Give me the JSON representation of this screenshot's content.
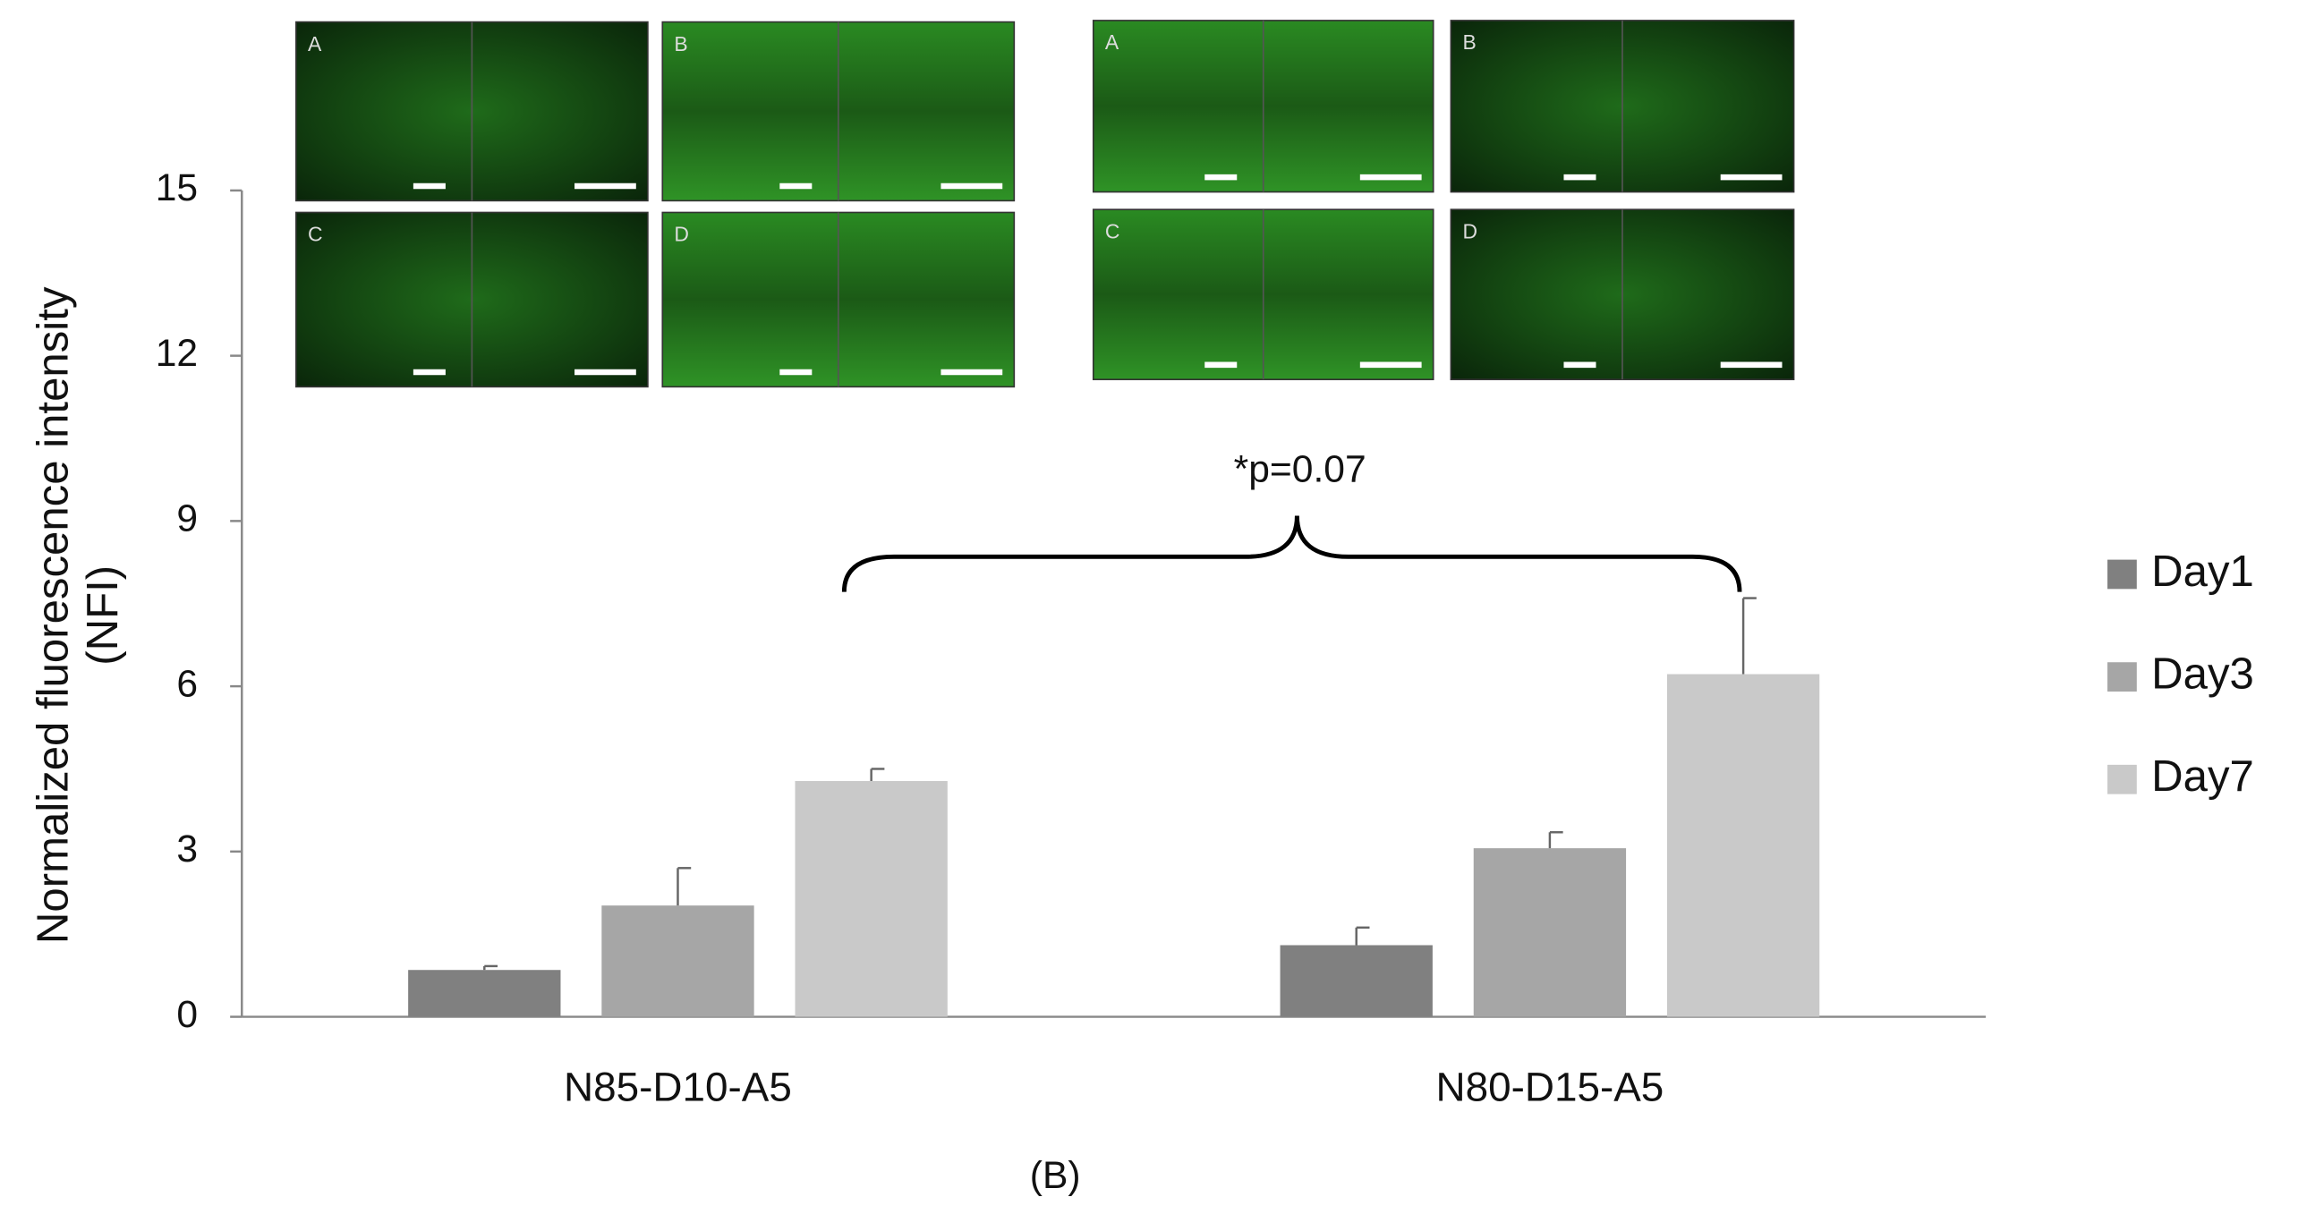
{
  "chart_data": {
    "type": "bar",
    "categories": [
      "N85-D10-A5",
      "N80-D15-A5"
    ],
    "series": [
      {
        "name": "Day1",
        "color": "#808080",
        "values": [
          0.85,
          1.3
        ],
        "errors": [
          0.07,
          0.32
        ]
      },
      {
        "name": "Day3",
        "color": "#a6a6a6",
        "values": [
          2.02,
          3.06
        ],
        "errors": [
          0.68,
          0.29
        ]
      },
      {
        "name": "Day7",
        "color": "#c9c9c9",
        "values": [
          4.28,
          6.22
        ],
        "errors": [
          0.22,
          1.38
        ]
      }
    ],
    "ylim": [
      0,
      15
    ],
    "yticks": [
      0,
      3,
      6,
      9,
      12,
      15
    ],
    "y_label": [
      "Normalized fluorescence intensity",
      "(NFI)"
    ],
    "annotation": "*p=0.07",
    "caption": "(B)",
    "legend_position": "right"
  },
  "insets": [
    {
      "panels": [
        "A",
        "B",
        "C",
        "D"
      ]
    },
    {
      "panels": [
        "A",
        "B",
        "C",
        "D"
      ]
    }
  ]
}
